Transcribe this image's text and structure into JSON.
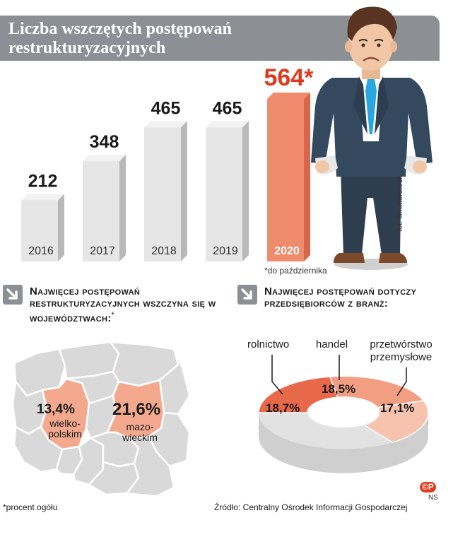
{
  "header": {
    "title": "Liczba wszczętych postępowań restrukturyzacyjnych"
  },
  "chart_data": [
    {
      "type": "bar",
      "categories": [
        "2016",
        "2017",
        "2018",
        "2019",
        "2020"
      ],
      "values": [
        212,
        348,
        465,
        465,
        564
      ],
      "value_labels": [
        "212",
        "348",
        "465",
        "465",
        "564*"
      ],
      "highlight_category": "2020",
      "footnote": "*do października",
      "colors": {
        "bar": "#e6e6e6",
        "bar_side": "#b9b9b9",
        "highlight": "#f08c6e",
        "highlight_side": "#d9664a",
        "highlight_text": "#e03a1e"
      }
    },
    {
      "type": "pie",
      "title": "Najwięcej postępowań dotyczy przedsiębiorców z branż:",
      "labels": [
        "rolnictwo",
        "handel",
        "przetwórstwo przemysłowe"
      ],
      "values": [
        18.7,
        18.5,
        17.1
      ],
      "value_labels": [
        "18,7%",
        "18,5%",
        "17,1%"
      ],
      "colors": [
        "#e8684a",
        "#f29e82",
        "#f7c3ae"
      ],
      "rest_color": "#e2e2e2"
    }
  ],
  "map": {
    "title": "Najwięcej postępowań restrukturyzacyjnych wszczyna się w województwach:",
    "title_star": "*",
    "regions": [
      {
        "name": "wielko-\npolskim",
        "value_label": "13,4%"
      },
      {
        "name": "mazo-\nwieckim",
        "value_label": "21,6%"
      }
    ],
    "colors": {
      "base": "#d9d9d9",
      "highlight": "#f4a98f"
    }
  },
  "credit": "fot. Shutterstock",
  "footnote_left": "*procent ogółu",
  "source": "Źródło: Centralny Ośrodek Informacji Gospodarczej",
  "logo_text": "©P",
  "author": "NS"
}
